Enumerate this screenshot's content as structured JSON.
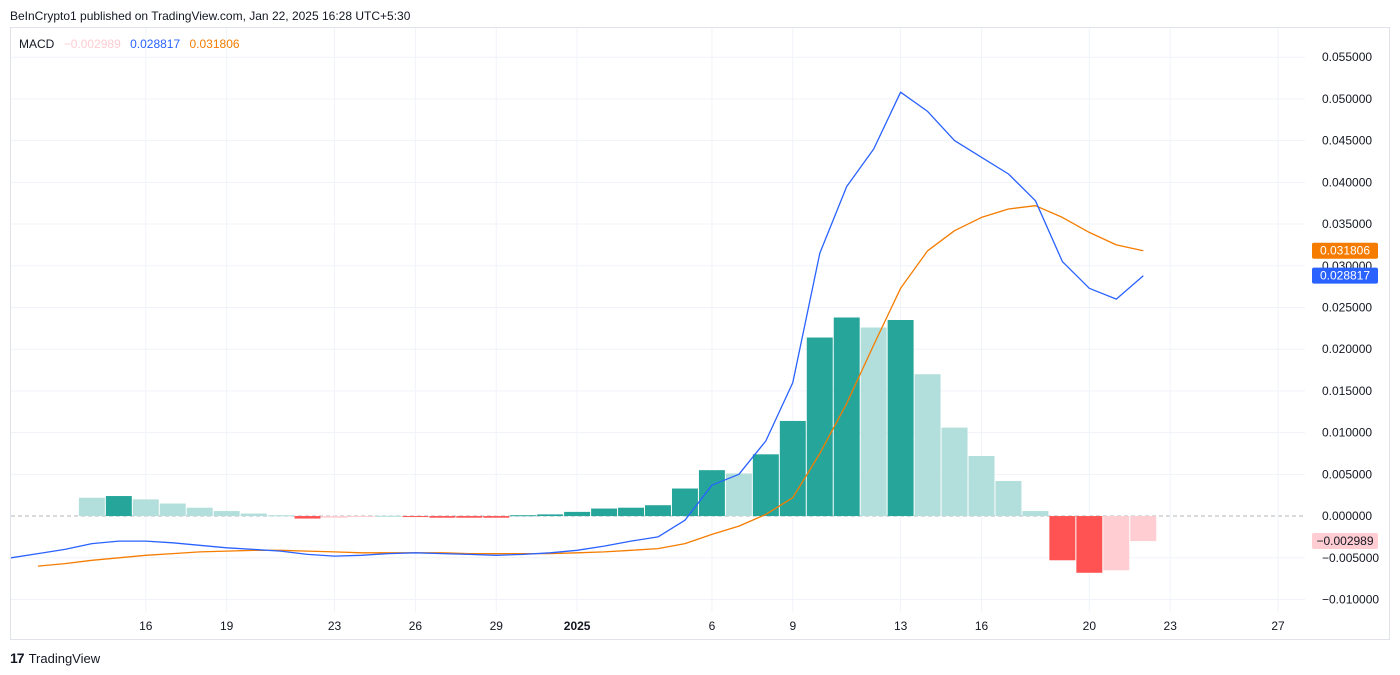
{
  "header": {
    "text": "BeInCrypto1 published on TradingView.com, Jan 22, 2025 16:28 UTC+5:30"
  },
  "legend": {
    "name": "MACD",
    "histogram": "−0.002989",
    "macd": "0.028817",
    "signal": "0.031806"
  },
  "footer": {
    "brand": "TradingView",
    "logo_text": "17"
  },
  "colors": {
    "macd": "#2962ff",
    "signal": "#f57c00",
    "hist_up_strong": "#26a69a",
    "hist_up_weak": "#b2dfdb",
    "hist_down_strong": "#ff5252",
    "hist_down_weak": "#ffcdd2",
    "grid": "#f0f3fa",
    "zero": "#b2b5be"
  },
  "chart_data": {
    "type": "bar+line",
    "ylim": [
      -0.0115,
      0.0585
    ],
    "y_ticks": [
      "0.055000",
      "0.050000",
      "0.045000",
      "0.040000",
      "0.035000",
      "0.030000",
      "0.025000",
      "0.020000",
      "0.015000",
      "0.010000",
      "0.005000",
      "0.000000",
      "−0.005000",
      "−0.010000"
    ],
    "y_tick_values": [
      0.055,
      0.05,
      0.045,
      0.04,
      0.035,
      0.03,
      0.025,
      0.02,
      0.015,
      0.01,
      0.005,
      0,
      -0.005,
      -0.01
    ],
    "x_ticks": [
      {
        "label": "16",
        "date": "2024-12-16"
      },
      {
        "label": "19",
        "date": "2024-12-19"
      },
      {
        "label": "23",
        "date": "2024-12-23"
      },
      {
        "label": "26",
        "date": "2024-12-26"
      },
      {
        "label": "29",
        "date": "2024-12-29"
      },
      {
        "label": "2025",
        "date": "2025-01-01",
        "bold": true
      },
      {
        "label": "6",
        "date": "2025-01-06"
      },
      {
        "label": "9",
        "date": "2025-01-09"
      },
      {
        "label": "13",
        "date": "2025-01-13"
      },
      {
        "label": "16",
        "date": "2025-01-16"
      },
      {
        "label": "20",
        "date": "2025-01-20"
      },
      {
        "label": "23",
        "date": "2025-01-23"
      },
      {
        "label": "27",
        "date": "2025-01-27"
      }
    ],
    "x_range": [
      "2024-12-11",
      "2025-01-28"
    ],
    "histogram": {
      "dates": [
        "2024-12-14",
        "2024-12-15",
        "2024-12-16",
        "2024-12-17",
        "2024-12-18",
        "2024-12-19",
        "2024-12-20",
        "2024-12-21",
        "2024-12-22",
        "2024-12-23",
        "2024-12-24",
        "2024-12-25",
        "2024-12-26",
        "2024-12-27",
        "2024-12-28",
        "2024-12-29",
        "2024-12-30",
        "2024-12-31",
        "2025-01-01",
        "2025-01-02",
        "2025-01-03",
        "2025-01-04",
        "2025-01-05",
        "2025-01-06",
        "2025-01-07",
        "2025-01-08",
        "2025-01-09",
        "2025-01-10",
        "2025-01-11",
        "2025-01-12",
        "2025-01-13",
        "2025-01-14",
        "2025-01-15",
        "2025-01-16",
        "2025-01-17",
        "2025-01-18",
        "2025-01-19",
        "2025-01-20",
        "2025-01-21",
        "2025-01-22"
      ],
      "values": [
        0.0022,
        0.0024,
        0.002,
        0.0015,
        0.001,
        0.0006,
        0.0003,
        0.0001,
        -0.0003,
        -0.0002,
        -5e-05,
        3e-05,
        -0.0001,
        -0.0002,
        -0.0002,
        -0.0002,
        0.0001,
        0.0002,
        0.0005,
        0.0009,
        0.001,
        0.0013,
        0.0033,
        0.0055,
        0.0051,
        0.0074,
        0.0114,
        0.0214,
        0.0238,
        0.0226,
        0.0235,
        0.017,
        0.0106,
        0.0072,
        0.0042,
        0.0006,
        -0.0053,
        -0.0068,
        -0.0065,
        -0.003
      ],
      "colors": [
        "hist_up_weak",
        "hist_up_strong",
        "hist_up_weak",
        "hist_up_weak",
        "hist_up_weak",
        "hist_up_weak",
        "hist_up_weak",
        "hist_up_weak",
        "hist_down_strong",
        "hist_down_weak",
        "hist_down_weak",
        "hist_up_weak",
        "hist_down_strong",
        "hist_down_strong",
        "hist_down_strong",
        "hist_down_strong",
        "hist_up_strong",
        "hist_up_strong",
        "hist_up_strong",
        "hist_up_strong",
        "hist_up_strong",
        "hist_up_strong",
        "hist_up_strong",
        "hist_up_strong",
        "hist_up_weak",
        "hist_up_strong",
        "hist_up_strong",
        "hist_up_strong",
        "hist_up_strong",
        "hist_up_weak",
        "hist_up_strong",
        "hist_up_weak",
        "hist_up_weak",
        "hist_up_weak",
        "hist_up_weak",
        "hist_up_weak",
        "hist_down_strong",
        "hist_down_strong",
        "hist_down_weak",
        "hist_down_weak"
      ]
    },
    "macd_line": {
      "dates": [
        "2024-12-11",
        "2024-12-12",
        "2024-12-13",
        "2024-12-14",
        "2024-12-15",
        "2024-12-16",
        "2024-12-17",
        "2024-12-18",
        "2024-12-19",
        "2024-12-20",
        "2024-12-21",
        "2024-12-22",
        "2024-12-23",
        "2024-12-24",
        "2024-12-25",
        "2024-12-26",
        "2024-12-27",
        "2024-12-28",
        "2024-12-29",
        "2024-12-30",
        "2024-12-31",
        "2025-01-01",
        "2025-01-02",
        "2025-01-03",
        "2025-01-04",
        "2025-01-05",
        "2025-01-06",
        "2025-01-07",
        "2025-01-08",
        "2025-01-09",
        "2025-01-10",
        "2025-01-11",
        "2025-01-12",
        "2025-01-13",
        "2025-01-14",
        "2025-01-15",
        "2025-01-16",
        "2025-01-17",
        "2025-01-18",
        "2025-01-19",
        "2025-01-20",
        "2025-01-21",
        "2025-01-22"
      ],
      "values": [
        -0.005,
        -0.0045,
        -0.004,
        -0.0033,
        -0.003,
        -0.003,
        -0.0032,
        -0.0035,
        -0.0038,
        -0.004,
        -0.0042,
        -0.0046,
        -0.0048,
        -0.0047,
        -0.0045,
        -0.0044,
        -0.0045,
        -0.0046,
        -0.0047,
        -0.0046,
        -0.0044,
        -0.0041,
        -0.0036,
        -0.003,
        -0.0025,
        -0.0005,
        0.0037,
        0.005,
        0.009,
        0.016,
        0.0315,
        0.0395,
        0.044,
        0.0508,
        0.0485,
        0.045,
        0.043,
        0.041,
        0.0378,
        0.0305,
        0.0273,
        0.026,
        0.0288
      ]
    },
    "signal_line": {
      "dates": [
        "2024-12-12",
        "2024-12-13",
        "2024-12-14",
        "2024-12-15",
        "2024-12-16",
        "2024-12-17",
        "2024-12-18",
        "2024-12-19",
        "2024-12-20",
        "2024-12-21",
        "2024-12-22",
        "2024-12-23",
        "2024-12-24",
        "2024-12-25",
        "2024-12-26",
        "2024-12-27",
        "2024-12-28",
        "2024-12-29",
        "2024-12-30",
        "2024-12-31",
        "2025-01-01",
        "2025-01-02",
        "2025-01-03",
        "2025-01-04",
        "2025-01-05",
        "2025-01-06",
        "2025-01-07",
        "2025-01-08",
        "2025-01-09",
        "2025-01-10",
        "2025-01-11",
        "2025-01-12",
        "2025-01-13",
        "2025-01-14",
        "2025-01-15",
        "2025-01-16",
        "2025-01-17",
        "2025-01-18",
        "2025-01-19",
        "2025-01-20",
        "2025-01-21",
        "2025-01-22"
      ],
      "values": [
        -0.006,
        -0.0057,
        -0.0053,
        -0.005,
        -0.0047,
        -0.0045,
        -0.0043,
        -0.0042,
        -0.0041,
        -0.0041,
        -0.0042,
        -0.0043,
        -0.0044,
        -0.0044,
        -0.0044,
        -0.0044,
        -0.0045,
        -0.0045,
        -0.0045,
        -0.0045,
        -0.0044,
        -0.0043,
        -0.0041,
        -0.0039,
        -0.0033,
        -0.0022,
        -0.0012,
        0.0002,
        0.0022,
        0.0075,
        0.0135,
        0.0205,
        0.0273,
        0.0318,
        0.0342,
        0.0358,
        0.0368,
        0.0372,
        0.0358,
        0.034,
        0.0325,
        0.0318
      ]
    },
    "price_labels": [
      {
        "text": "0.031806",
        "value": 0.031806,
        "color": "signal"
      },
      {
        "text": "0.028817",
        "value": 0.028817,
        "color": "macd"
      },
      {
        "text": "−0.002989",
        "value": -0.002989,
        "color": "hist_down_weak"
      }
    ]
  }
}
